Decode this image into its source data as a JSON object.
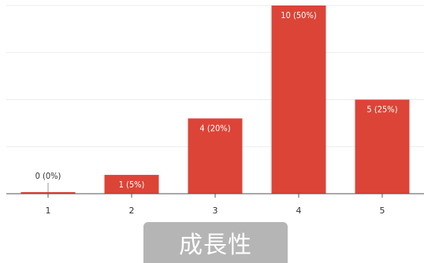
{
  "chart_data": {
    "type": "bar",
    "categories": [
      "1",
      "2",
      "3",
      "4",
      "5"
    ],
    "values": [
      0,
      1,
      4,
      10,
      5
    ],
    "data_labels": [
      "0 (0%)",
      "1 (5%)",
      "4 (20%)",
      "10 (50%)",
      "5 (25%)"
    ],
    "ylim": [
      0,
      10
    ],
    "grid": true,
    "bar_color": "#dc4437",
    "grid_color": "#ececec",
    "axis_color": "#555555"
  },
  "caption": {
    "text": "成長性",
    "background": "#b5b5b5"
  }
}
